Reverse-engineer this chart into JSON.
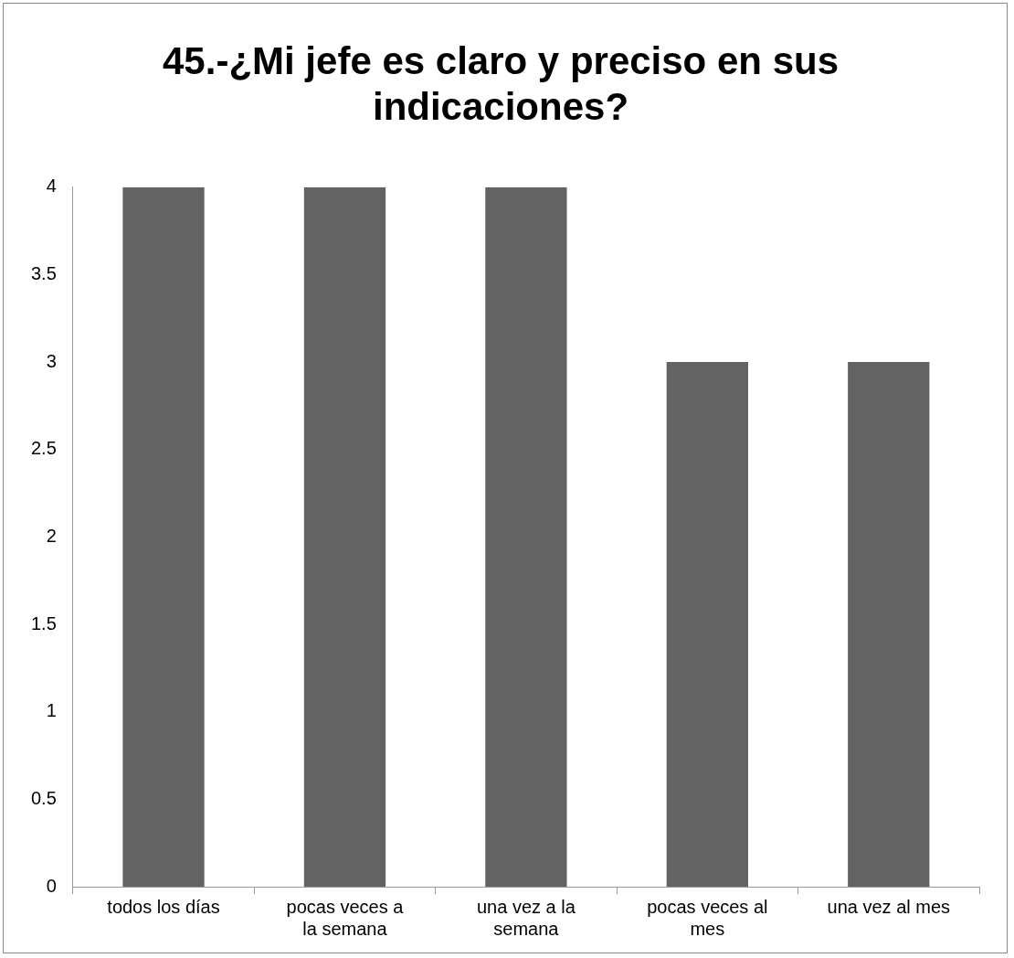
{
  "chart_data": {
    "type": "bar",
    "title": "45.-¿Mi jefe es claro y preciso en sus indicaciones?",
    "categories": [
      "todos los días",
      "pocas veces a la semana",
      "una vez a la semana",
      "pocas veces al mes",
      "una vez al mes"
    ],
    "values": [
      4,
      4,
      4,
      3,
      3
    ],
    "color": "#636363",
    "ylim": [
      0,
      4
    ],
    "yticks": [
      0,
      0.5,
      1,
      1.5,
      2,
      2.5,
      3,
      3.5,
      4
    ],
    "grid": false,
    "legend": false
  }
}
